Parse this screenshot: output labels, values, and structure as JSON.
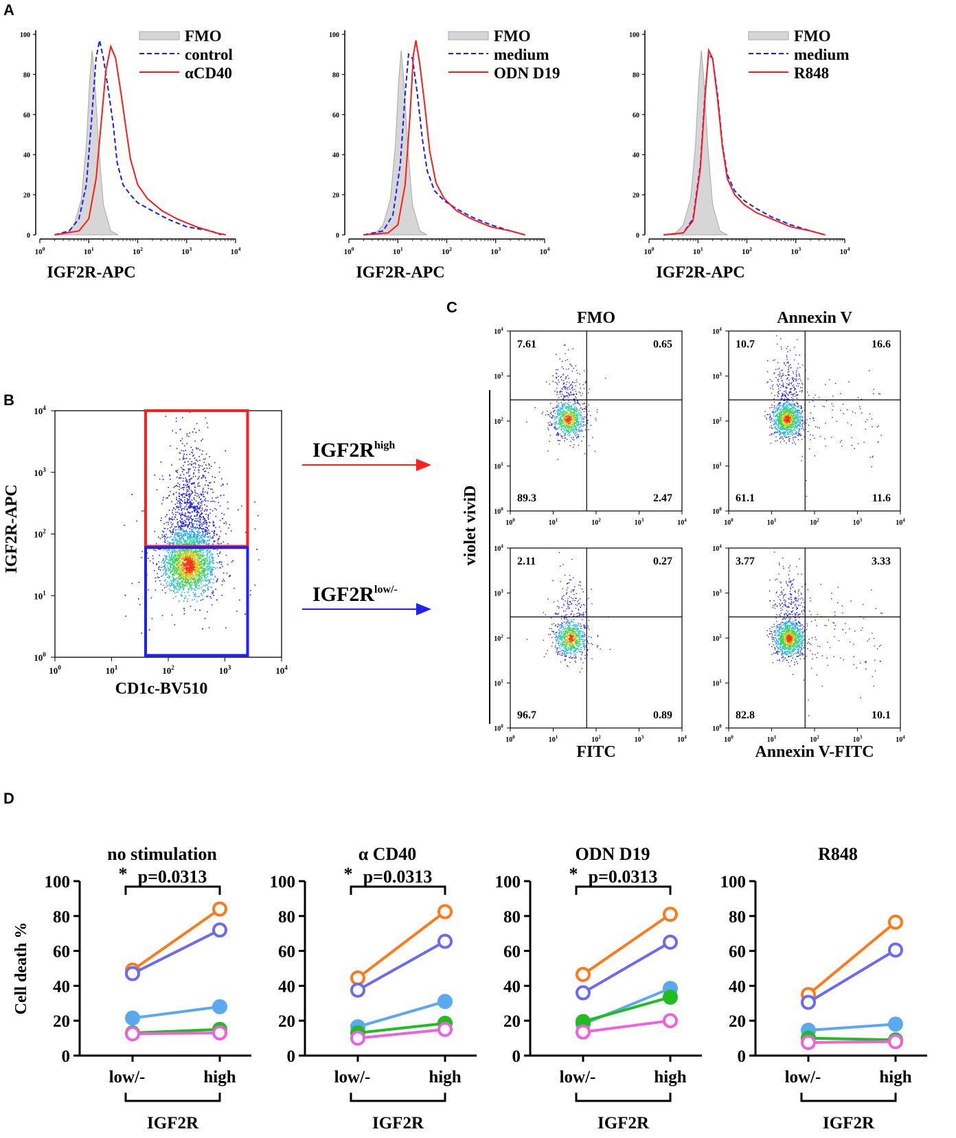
{
  "panel_labels": [
    "A",
    "B",
    "C",
    "D"
  ],
  "colors": {
    "fmo_fill": "#d6d6d6",
    "fmo_stroke": "#a8a8a8",
    "dashed": "#1a1aff",
    "solid": "#ff1a1a",
    "gate_high": "#ff1f1f",
    "gate_low": "#1f1fff",
    "series": [
      "#ff7a1a",
      "#6b6bf0",
      "#5aa9f0",
      "#1fbd1f",
      "#f060e0"
    ]
  },
  "chart_data": [
    {
      "panel": "A",
      "type": "histogram",
      "xlabel": "IGF2R-APC",
      "xscale": "log",
      "xlim_exp": [
        0,
        4
      ],
      "ylim": [
        0,
        100
      ],
      "yticks": [
        "0",
        "20",
        "40",
        "60",
        "80",
        "100"
      ],
      "xticks": [
        "10^0",
        "10^1",
        "10^2",
        "10^3",
        "10^4"
      ],
      "legend": [
        "FMO",
        "control",
        "αCD40"
      ],
      "series": {
        "fmo": [
          [
            0.3,
            0
          ],
          [
            0.55,
            1
          ],
          [
            0.7,
            5
          ],
          [
            0.85,
            18
          ],
          [
            0.95,
            45
          ],
          [
            1.02,
            78
          ],
          [
            1.07,
            92
          ],
          [
            1.12,
            78
          ],
          [
            1.2,
            45
          ],
          [
            1.3,
            15
          ],
          [
            1.45,
            2
          ],
          [
            1.6,
            0
          ]
        ],
        "dashed": [
          [
            0.3,
            0
          ],
          [
            0.6,
            2
          ],
          [
            0.8,
            8
          ],
          [
            0.95,
            25
          ],
          [
            1.05,
            55
          ],
          [
            1.15,
            88
          ],
          [
            1.22,
            97
          ],
          [
            1.3,
            88
          ],
          [
            1.4,
            72
          ],
          [
            1.5,
            55
          ],
          [
            1.58,
            36
          ],
          [
            1.7,
            25
          ],
          [
            1.85,
            20
          ],
          [
            2.0,
            16
          ],
          [
            2.3,
            12
          ],
          [
            2.6,
            8
          ],
          [
            3.0,
            4
          ],
          [
            3.5,
            2
          ],
          [
            3.7,
            0
          ]
        ],
        "solid": [
          [
            0.3,
            0
          ],
          [
            0.8,
            2
          ],
          [
            1.0,
            8
          ],
          [
            1.15,
            28
          ],
          [
            1.25,
            55
          ],
          [
            1.35,
            82
          ],
          [
            1.45,
            94
          ],
          [
            1.55,
            88
          ],
          [
            1.65,
            72
          ],
          [
            1.75,
            55
          ],
          [
            1.85,
            38
          ],
          [
            2.0,
            25
          ],
          [
            2.2,
            18
          ],
          [
            2.5,
            12
          ],
          [
            2.8,
            8
          ],
          [
            3.2,
            4
          ],
          [
            3.6,
            1
          ],
          [
            3.8,
            0
          ]
        ]
      }
    },
    {
      "panel": "A",
      "type": "histogram",
      "xlabel": "IGF2R-APC",
      "xscale": "log",
      "xlim_exp": [
        0,
        4
      ],
      "ylim": [
        0,
        100
      ],
      "yticks": [
        "0",
        "20",
        "40",
        "60",
        "80",
        "100"
      ],
      "xticks": [
        "10^0",
        "10^1",
        "10^2",
        "10^3",
        "10^4"
      ],
      "legend": [
        "FMO",
        "medium",
        "ODN D19"
      ],
      "series": {
        "fmo": [
          [
            0.3,
            0
          ],
          [
            0.55,
            1
          ],
          [
            0.7,
            5
          ],
          [
            0.85,
            18
          ],
          [
            0.95,
            45
          ],
          [
            1.02,
            78
          ],
          [
            1.07,
            92
          ],
          [
            1.12,
            78
          ],
          [
            1.2,
            45
          ],
          [
            1.3,
            15
          ],
          [
            1.45,
            2
          ],
          [
            1.6,
            0
          ]
        ],
        "dashed": [
          [
            0.3,
            0
          ],
          [
            0.7,
            2
          ],
          [
            0.9,
            10
          ],
          [
            1.05,
            35
          ],
          [
            1.15,
            70
          ],
          [
            1.22,
            90
          ],
          [
            1.3,
            88
          ],
          [
            1.4,
            70
          ],
          [
            1.5,
            48
          ],
          [
            1.6,
            32
          ],
          [
            1.75,
            22
          ],
          [
            1.95,
            17
          ],
          [
            2.2,
            13
          ],
          [
            2.5,
            9
          ],
          [
            2.9,
            5
          ],
          [
            3.3,
            2
          ],
          [
            3.6,
            0
          ]
        ],
        "solid": [
          [
            0.3,
            0
          ],
          [
            0.8,
            1
          ],
          [
            1.0,
            5
          ],
          [
            1.15,
            25
          ],
          [
            1.25,
            60
          ],
          [
            1.32,
            90
          ],
          [
            1.37,
            97
          ],
          [
            1.45,
            85
          ],
          [
            1.55,
            65
          ],
          [
            1.65,
            42
          ],
          [
            1.78,
            26
          ],
          [
            1.95,
            18
          ],
          [
            2.2,
            12
          ],
          [
            2.5,
            8
          ],
          [
            2.9,
            4
          ],
          [
            3.3,
            2
          ],
          [
            3.6,
            0
          ]
        ]
      }
    },
    {
      "panel": "A",
      "type": "histogram",
      "xlabel": "IGF2R-APC",
      "xscale": "log",
      "xlim_exp": [
        0,
        4
      ],
      "ylim": [
        0,
        100
      ],
      "yticks": [
        "0",
        "20",
        "40",
        "60",
        "80",
        "100"
      ],
      "xticks": [
        "10^0",
        "10^1",
        "10^2",
        "10^3",
        "10^4"
      ],
      "legend": [
        "FMO",
        "medium",
        "R848"
      ],
      "series": {
        "fmo": [
          [
            0.3,
            0
          ],
          [
            0.55,
            1
          ],
          [
            0.7,
            5
          ],
          [
            0.85,
            18
          ],
          [
            0.95,
            45
          ],
          [
            1.02,
            78
          ],
          [
            1.07,
            92
          ],
          [
            1.12,
            78
          ],
          [
            1.2,
            45
          ],
          [
            1.3,
            15
          ],
          [
            1.45,
            2
          ],
          [
            1.6,
            0
          ]
        ],
        "dashed": [
          [
            0.3,
            0
          ],
          [
            0.7,
            1
          ],
          [
            0.9,
            8
          ],
          [
            1.05,
            35
          ],
          [
            1.15,
            72
          ],
          [
            1.22,
            90
          ],
          [
            1.3,
            88
          ],
          [
            1.4,
            70
          ],
          [
            1.5,
            45
          ],
          [
            1.6,
            30
          ],
          [
            1.75,
            22
          ],
          [
            1.95,
            17
          ],
          [
            2.2,
            13
          ],
          [
            2.5,
            9
          ],
          [
            2.9,
            5
          ],
          [
            3.3,
            2
          ],
          [
            3.6,
            0
          ]
        ],
        "solid": [
          [
            0.3,
            0
          ],
          [
            0.7,
            1
          ],
          [
            0.9,
            7
          ],
          [
            1.05,
            33
          ],
          [
            1.15,
            70
          ],
          [
            1.22,
            92
          ],
          [
            1.3,
            88
          ],
          [
            1.4,
            68
          ],
          [
            1.5,
            44
          ],
          [
            1.6,
            28
          ],
          [
            1.75,
            20
          ],
          [
            1.95,
            15
          ],
          [
            2.2,
            11
          ],
          [
            2.5,
            8
          ],
          [
            2.9,
            4
          ],
          [
            3.3,
            2
          ],
          [
            3.6,
            0
          ]
        ]
      }
    },
    {
      "panel": "B",
      "type": "scatter",
      "xlabel": "CD1c-BV510",
      "ylabel": "IGF2R-APC",
      "xscale": "log",
      "yscale": "log",
      "xlim_exp": [
        0,
        4
      ],
      "ylim_exp": [
        0,
        4
      ],
      "ticks": [
        "10^0",
        "10^1",
        "10^2",
        "10^3",
        "10^4"
      ],
      "gates": [
        {
          "name": "IGF2R high",
          "x": [
            1.6,
            3.4
          ],
          "y": [
            1.8,
            4.0
          ]
        },
        {
          "name": "IGF2R low/-",
          "x": [
            1.6,
            3.4
          ],
          "y": [
            0.03,
            1.78
          ]
        }
      ],
      "arrow_labels": [
        {
          "base": "IGF2R",
          "sup": "high"
        },
        {
          "base": "IGF2R",
          "sup": "low/-"
        }
      ]
    },
    {
      "panel": "C",
      "type": "scatter-quadrant",
      "col_titles": [
        "FMO",
        "Annexin V"
      ],
      "ylabel": "violet viviD",
      "xlabels": [
        "FITC",
        "Annexin V-FITC"
      ],
      "quad_split": {
        "x_exp": 1.78,
        "y_exp": 2.47
      },
      "ticks": [
        "10^0",
        "10^1",
        "10^2",
        "10^3",
        "10^4"
      ],
      "plots": [
        {
          "row": "high",
          "stain": "FMO",
          "quadrants": {
            "ul": "7.61",
            "ur": "0.65",
            "ll": "89.3",
            "lr": "2.47"
          }
        },
        {
          "row": "high",
          "stain": "Annexin V",
          "quadrants": {
            "ul": "10.7",
            "ur": "16.6",
            "ll": "61.1",
            "lr": "11.6"
          }
        },
        {
          "row": "low",
          "stain": "FMO",
          "quadrants": {
            "ul": "2.11",
            "ur": "0.27",
            "ll": "96.7",
            "lr": "0.89"
          }
        },
        {
          "row": "low",
          "stain": "Annexin V",
          "quadrants": {
            "ul": "3.77",
            "ur": "3.33",
            "ll": "82.8",
            "lr": "10.1"
          }
        }
      ]
    },
    {
      "panel": "D",
      "type": "line",
      "ylabel": "Cell death %",
      "ylim": [
        0,
        100
      ],
      "yticks": [
        "0",
        "20",
        "40",
        "60",
        "80",
        "100"
      ],
      "categories": [
        "low/-",
        "high"
      ],
      "group_label": "IGF2R",
      "plots": [
        {
          "title": "no stimulation",
          "sig": "p=0.0313",
          "series": [
            [
              49,
              84
            ],
            [
              47,
              72
            ],
            [
              21.5,
              28
            ],
            [
              13,
              15
            ],
            [
              12.5,
              13
            ]
          ]
        },
        {
          "title": "α CD40",
          "sig": "p=0.0313",
          "series": [
            [
              44.5,
              82.5
            ],
            [
              37.5,
              65.5
            ],
            [
              16.5,
              31
            ],
            [
              13,
              18.5
            ],
            [
              10,
              15
            ]
          ]
        },
        {
          "title": "ODN D19",
          "sig": "p=0.0313",
          "series": [
            [
              46.5,
              81
            ],
            [
              36,
              65
            ],
            [
              18,
              38.5
            ],
            [
              19.5,
              33.5
            ],
            [
              13.5,
              20
            ]
          ]
        },
        {
          "title": "R848",
          "sig": "",
          "series": [
            [
              35,
              76.5
            ],
            [
              30.5,
              60.5
            ],
            [
              14.5,
              18
            ],
            [
              10,
              9
            ],
            [
              7.5,
              8
            ]
          ]
        }
      ],
      "series_style": [
        "open",
        "open",
        "filled",
        "filled",
        "open"
      ],
      "sig_marker": "*"
    }
  ]
}
